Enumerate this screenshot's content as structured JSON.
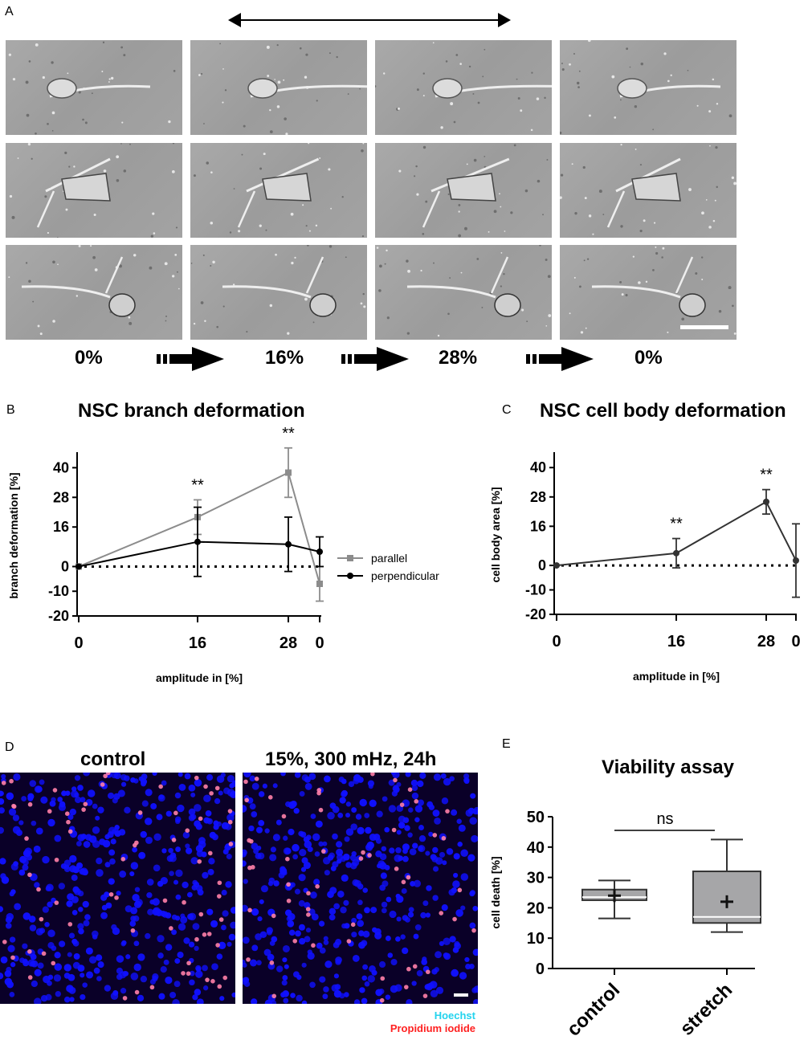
{
  "panel_a": {
    "letter": "A",
    "amplitudes": [
      "0%",
      "16%",
      "28%",
      "0%"
    ]
  },
  "panel_b": {
    "letter": "B"
  },
  "panel_c": {
    "letter": "C"
  },
  "panel_d": {
    "letter": "D",
    "titles": [
      "control",
      "15%, 300 mHz, 24h"
    ],
    "stain_labels": [
      "Hoechst",
      "Propidium iodide"
    ],
    "colors": {
      "hoechst": "#22d3ee",
      "propidium": "#ff2020",
      "nuclei": "#1010ff"
    }
  },
  "panel_e": {
    "letter": "E"
  },
  "chart_data": [
    {
      "type": "line",
      "title": "NSC branch deformation",
      "xlabel": "amplitude in [%]",
      "ylabel": "branch deformation [%]",
      "x_tick_labels": [
        "0",
        "16",
        "28",
        "0"
      ],
      "y_ticks": [
        40,
        28,
        16,
        0,
        -10,
        -20
      ],
      "ylim": [
        -20,
        45
      ],
      "series": [
        {
          "name": "parallel",
          "color": "#8c8c8c",
          "values": [
            0,
            20,
            38,
            -7
          ],
          "errors": [
            0,
            7,
            10,
            7
          ]
        },
        {
          "name": "perpendicular",
          "color": "#000000",
          "values": [
            0,
            10,
            9,
            6
          ],
          "errors": [
            0,
            14,
            11,
            6
          ]
        }
      ],
      "annotations": [
        {
          "text": "**",
          "x_index": 1
        },
        {
          "text": "**",
          "x_index": 2
        }
      ]
    },
    {
      "type": "line",
      "title": "NSC cell body deformation",
      "xlabel": "amplitude in [%]",
      "ylabel": "cell body area [%]",
      "x_tick_labels": [
        "0",
        "16",
        "28",
        "0"
      ],
      "y_ticks": [
        40,
        28,
        16,
        0,
        -10,
        -20
      ],
      "ylim": [
        -20,
        45
      ],
      "series": [
        {
          "name": "",
          "color": "#333333",
          "values": [
            0,
            5,
            26,
            2
          ],
          "errors": [
            0,
            6,
            5,
            15
          ]
        }
      ],
      "annotations": [
        {
          "text": "**",
          "x_index": 1
        },
        {
          "text": "**",
          "x_index": 2
        }
      ]
    },
    {
      "type": "box",
      "title": "Viability assay",
      "ylabel": "cell death [%]",
      "categories": [
        "control",
        "stretch"
      ],
      "y_ticks": [
        50,
        40,
        30,
        20,
        10,
        0
      ],
      "ylim": [
        0,
        50
      ],
      "boxes": [
        {
          "category": "control",
          "min": 16.5,
          "q1": 22.5,
          "median": 23.5,
          "q3": 26,
          "max": 29,
          "mean": 24
        },
        {
          "category": "stretch",
          "min": 12,
          "q1": 15,
          "median": 17,
          "q3": 32,
          "max": 42.5,
          "mean": 22
        }
      ],
      "significance": "ns"
    }
  ]
}
